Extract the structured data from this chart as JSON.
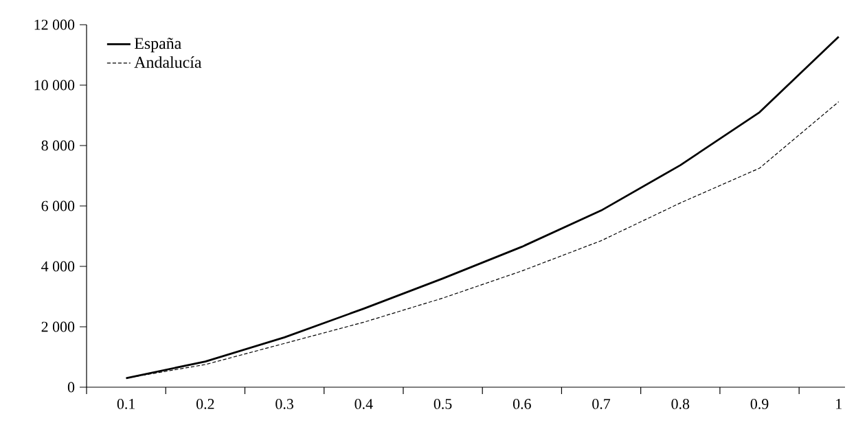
{
  "chart_data": {
    "type": "line",
    "categories": [
      "0.1",
      "0.2",
      "0.3",
      "0.4",
      "0.5",
      "0.6",
      "0.7",
      "0.8",
      "0.9",
      "1"
    ],
    "series": [
      {
        "name": "España",
        "color": "#000000",
        "line_style": "solid",
        "values": [
          300,
          850,
          1650,
          2600,
          3600,
          4650,
          5850,
          7350,
          9100,
          11600
        ]
      },
      {
        "name": "Andalucía",
        "color": "#000000",
        "line_style": "dashed",
        "values": [
          300,
          750,
          1450,
          2150,
          2950,
          3850,
          4850,
          6100,
          7250,
          9450
        ]
      }
    ],
    "ylim": [
      0,
      12000
    ],
    "yticks": [
      0,
      {
        "value": 2000,
        "label": "2 000"
      },
      {
        "value": 4000,
        "label": "4 000"
      },
      {
        "value": 6000,
        "label": "6 000"
      },
      {
        "value": 8000,
        "label": "8 000"
      },
      {
        "value": 10000,
        "label": "10 000"
      },
      {
        "value": 12000,
        "label": "12 000"
      }
    ],
    "grid": false,
    "legend": "top left",
    "marker": "none"
  }
}
